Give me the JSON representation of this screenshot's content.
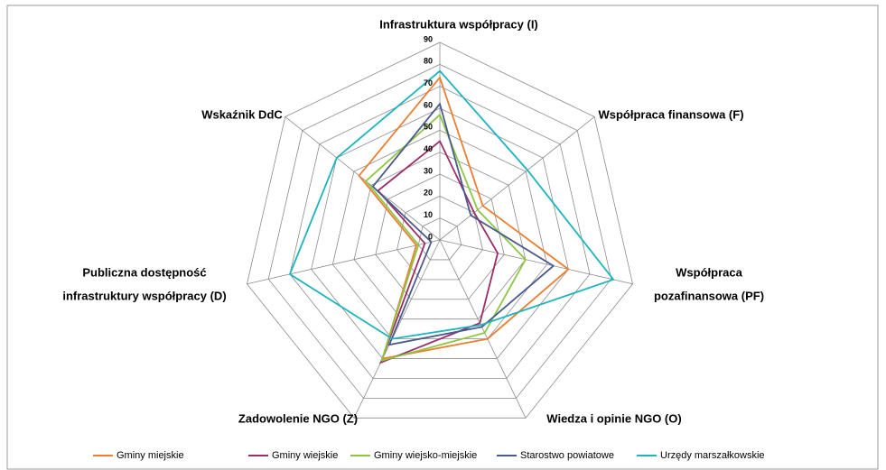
{
  "chart_data": {
    "type": "radar",
    "categories": [
      [
        "Infrastruktura współpracy (I)"
      ],
      [
        "Współpraca finansowa (F)"
      ],
      [
        "Współpraca",
        "pozafinansowa (PF)"
      ],
      [
        "Wiedza i opinie NGO (O)"
      ],
      [
        "Zadowolenie NGO (Z)"
      ],
      [
        "Publiczna dostępność",
        "infrastruktury współpracy (D)"
      ],
      [
        "Wskaźnik DdC"
      ]
    ],
    "series": [
      {
        "name": "Gminy miejskie",
        "color": "#ed7d31",
        "values": [
          74,
          25,
          60,
          50,
          60,
          11,
          47
        ]
      },
      {
        "name": "Gminy wiejskie",
        "color": "#9b2d6a",
        "values": [
          45,
          20,
          27,
          42,
          62,
          7,
          36
        ]
      },
      {
        "name": "Gminy wiejsko-miejskie",
        "color": "#8cc640",
        "values": [
          57,
          22,
          40,
          47,
          61,
          10,
          43
        ]
      },
      {
        "name": "Starostwo powiatowe",
        "color": "#4a5a8c",
        "values": [
          62,
          18,
          53,
          44,
          53,
          4,
          39
        ]
      },
      {
        "name": "Urzędy marszałkowskie",
        "color": "#1cb4be",
        "values": [
          77,
          51,
          81,
          43,
          50,
          70,
          60
        ]
      }
    ],
    "ylim": [
      0,
      90
    ],
    "yticks": [
      0,
      10,
      20,
      30,
      40,
      50,
      60,
      70,
      80,
      90
    ],
    "grid": true
  }
}
